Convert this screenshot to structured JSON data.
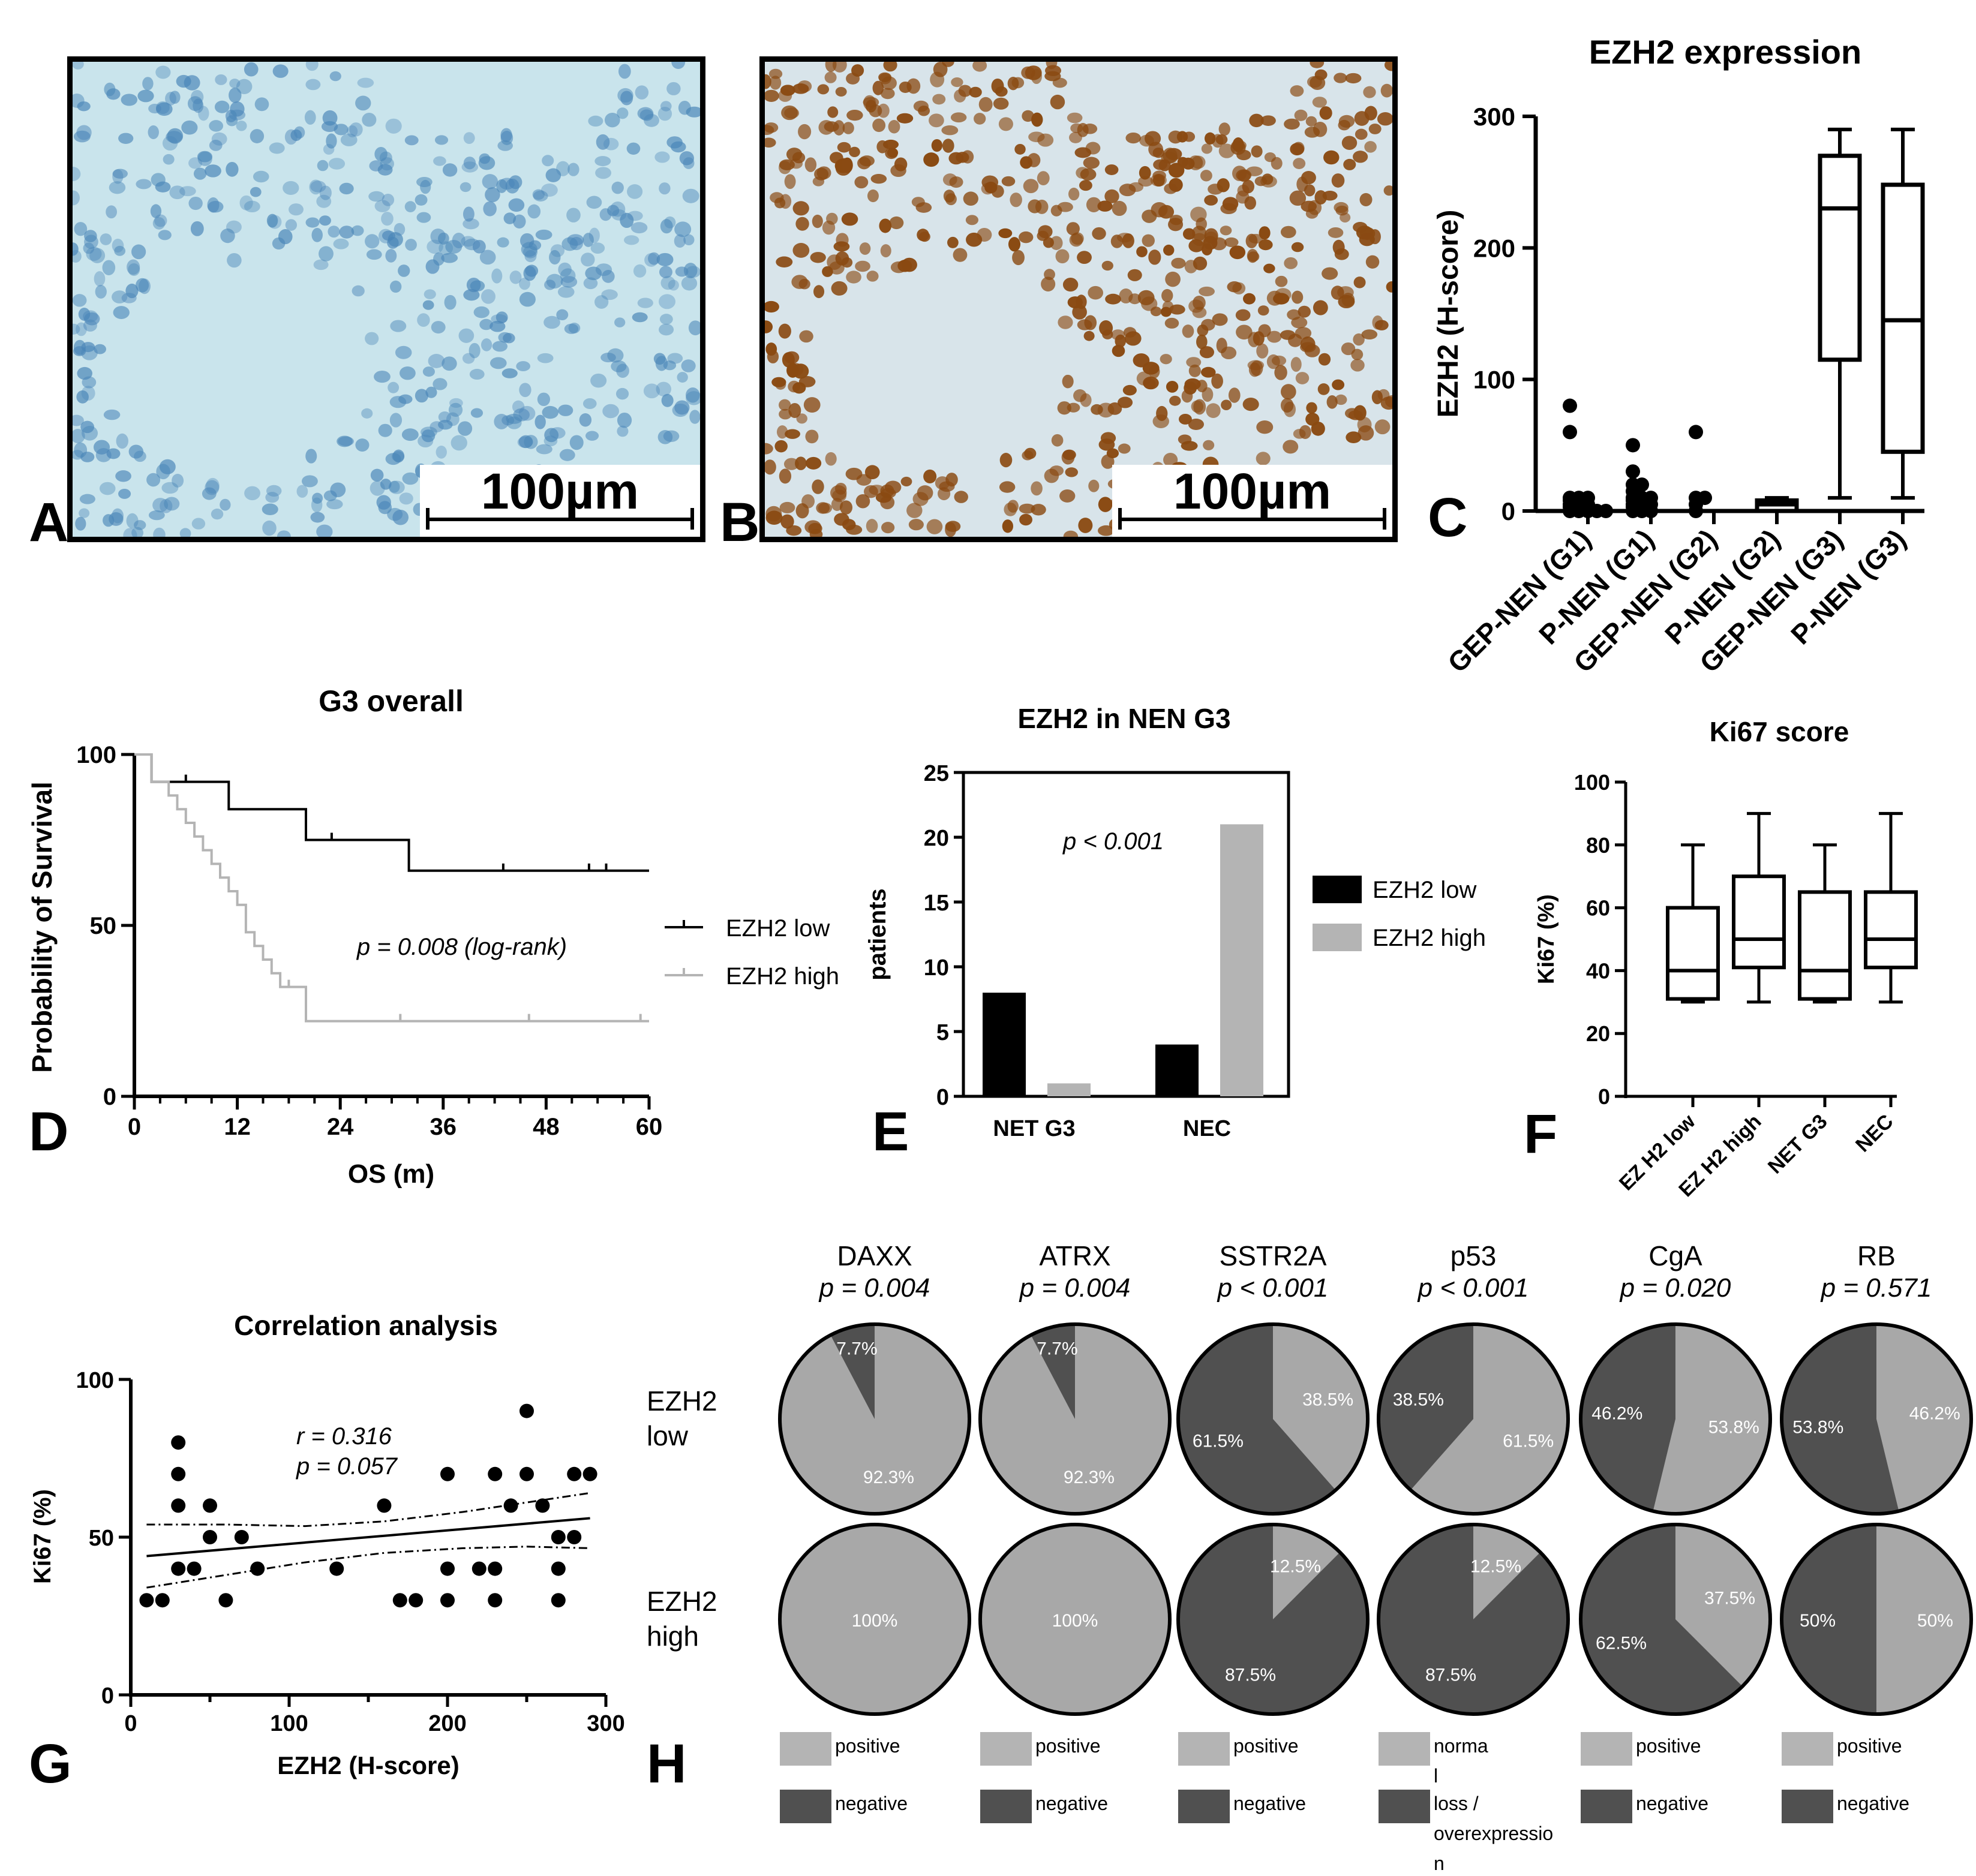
{
  "panel_letters": [
    "A",
    "B",
    "C",
    "D",
    "E",
    "F",
    "G",
    "H"
  ],
  "micrographs": [
    {
      "scale_label": "100µm",
      "stain": "negative",
      "base_color": "#c9e4ec",
      "nucleus_color": "#4a86b8"
    },
    {
      "scale_label": "100µm",
      "stain": "positive",
      "base_color": "#d8e4ea",
      "nucleus_color": "#8a4a12"
    }
  ],
  "colors": {
    "black": "#000000",
    "light_gray": "#b4b4b4",
    "dark_gray": "#505050",
    "mid_gray": "#a8a8a8"
  },
  "chart_data": [
    {
      "panel": "C",
      "type": "box",
      "title": "EZH2 expression",
      "ylabel": "EZH2 (H-score)",
      "ylim": [
        0,
        300
      ],
      "yticks": [
        0,
        100,
        200,
        300
      ],
      "categories": [
        "GEP-NEN (G1)",
        "P-NEN (G1)",
        "GEP-NEN (G2)",
        "P-NEN (G2)",
        "GEP-NEN (G3)",
        "P-NEN (G3)"
      ],
      "scatter_groups": [
        {
          "category": "GEP-NEN (G1)",
          "points": [
            0,
            0,
            0,
            0,
            0,
            3,
            3,
            3,
            5,
            5,
            5,
            8,
            8,
            10,
            10,
            10,
            60,
            80
          ]
        },
        {
          "category": "P-NEN (G1)",
          "points": [
            0,
            0,
            0,
            3,
            3,
            5,
            5,
            5,
            8,
            10,
            10,
            10,
            15,
            20,
            20,
            30,
            50
          ]
        },
        {
          "category": "GEP-NEN (G2)",
          "points": [
            0,
            5,
            10,
            10,
            60
          ]
        }
      ],
      "boxes": [
        {
          "category": "P-NEN (G2)",
          "min": 0,
          "q1": 0,
          "median": 5,
          "q3": 8,
          "max": 10
        },
        {
          "category": "GEP-NEN (G3)",
          "min": 10,
          "q1": 115,
          "median": 230,
          "q3": 270,
          "max": 290
        },
        {
          "category": "P-NEN (G3)",
          "min": 10,
          "q1": 45,
          "median": 145,
          "q3": 248,
          "max": 290
        }
      ]
    },
    {
      "panel": "D",
      "type": "line",
      "title": "G3 overall",
      "xlabel": "OS (m)",
      "ylabel": "Probability of Survival",
      "xlim": [
        0,
        60
      ],
      "ylim": [
        0,
        100
      ],
      "xticks": [
        0,
        12,
        24,
        36,
        48,
        60
      ],
      "yticks": [
        0,
        50,
        100
      ],
      "annotation": "p = 0.008 (log-rank)",
      "series": [
        {
          "name": "EZH2 low",
          "color": "#000000",
          "steps": [
            [
              0,
              100
            ],
            [
              2,
              100
            ],
            [
              2,
              92
            ],
            [
              11,
              92
            ],
            [
              11,
              84
            ],
            [
              20,
              84
            ],
            [
              20,
              75
            ],
            [
              32,
              75
            ],
            [
              32,
              66
            ],
            [
              60,
              66
            ]
          ],
          "censors": [
            [
              6,
              92
            ],
            [
              23,
              75
            ],
            [
              43,
              66
            ],
            [
              53,
              66
            ],
            [
              55,
              66
            ]
          ]
        },
        {
          "name": "EZH2 high",
          "color": "#b4b4b4",
          "steps": [
            [
              0,
              100
            ],
            [
              2,
              100
            ],
            [
              2,
              92
            ],
            [
              4,
              92
            ],
            [
              4,
              88
            ],
            [
              5,
              88
            ],
            [
              5,
              84
            ],
            [
              6,
              84
            ],
            [
              6,
              80
            ],
            [
              7,
              80
            ],
            [
              7,
              76
            ],
            [
              8,
              76
            ],
            [
              8,
              72
            ],
            [
              9,
              72
            ],
            [
              9,
              68
            ],
            [
              10,
              68
            ],
            [
              10,
              64
            ],
            [
              11,
              64
            ],
            [
              11,
              60
            ],
            [
              12,
              60
            ],
            [
              12,
              56
            ],
            [
              13,
              56
            ],
            [
              13,
              48
            ],
            [
              14,
              48
            ],
            [
              14,
              44
            ],
            [
              15,
              44
            ],
            [
              15,
              40
            ],
            [
              16,
              40
            ],
            [
              16,
              36
            ],
            [
              17,
              36
            ],
            [
              17,
              32
            ],
            [
              20,
              32
            ],
            [
              20,
              22
            ],
            [
              60,
              22
            ]
          ],
          "censors": [
            [
              18,
              32
            ],
            [
              31,
              22
            ],
            [
              46,
              22
            ],
            [
              59,
              22
            ]
          ]
        }
      ]
    },
    {
      "panel": "E",
      "type": "bar",
      "title": "EZH2 in NEN G3",
      "ylabel": "patients",
      "ylim": [
        0,
        25
      ],
      "yticks": [
        0,
        5,
        10,
        15,
        20,
        25
      ],
      "categories": [
        "NET G3",
        "NEC"
      ],
      "annotation": "p < 0.001",
      "series": [
        {
          "name": "EZH2 low",
          "color": "#000000",
          "values": [
            8,
            4
          ]
        },
        {
          "name": "EZH2 high",
          "color": "#b4b4b4",
          "values": [
            1,
            21
          ]
        }
      ]
    },
    {
      "panel": "F",
      "type": "box",
      "title": "Ki67 score",
      "ylabel": "Ki67 (%)",
      "ylim": [
        0,
        100
      ],
      "yticks": [
        0,
        20,
        40,
        60,
        80,
        100
      ],
      "categories": [
        "EZ H2 low",
        "EZ H2 high",
        "NET G3",
        "NEC"
      ],
      "boxes": [
        {
          "category": "EZ H2 low",
          "min": 30,
          "q1": 31,
          "median": 40,
          "q3": 60,
          "max": 80
        },
        {
          "category": "EZ H2 high",
          "min": 30,
          "q1": 41,
          "median": 50,
          "q3": 70,
          "max": 90
        },
        {
          "category": "NET G3",
          "min": 30,
          "q1": 31,
          "median": 40,
          "q3": 65,
          "max": 80
        },
        {
          "category": "NEC",
          "min": 30,
          "q1": 41,
          "median": 50,
          "q3": 65,
          "max": 90
        }
      ]
    },
    {
      "panel": "G",
      "type": "scatter",
      "title": "Correlation analysis",
      "xlabel": "EZH2 (H-score)",
      "ylabel": "Ki67 (%)",
      "xlim": [
        0,
        300
      ],
      "ylim": [
        0,
        100
      ],
      "xticks": [
        0,
        100,
        200,
        300
      ],
      "yticks": [
        0,
        50,
        100
      ],
      "annotation_lines": [
        "r = 0.316",
        "p = 0.057"
      ],
      "points": [
        [
          10,
          30
        ],
        [
          20,
          30
        ],
        [
          30,
          80
        ],
        [
          30,
          70
        ],
        [
          30,
          60
        ],
        [
          30,
          40
        ],
        [
          40,
          40
        ],
        [
          50,
          60
        ],
        [
          50,
          50
        ],
        [
          60,
          30
        ],
        [
          70,
          50
        ],
        [
          80,
          40
        ],
        [
          130,
          40
        ],
        [
          160,
          60
        ],
        [
          170,
          30
        ],
        [
          180,
          30
        ],
        [
          200,
          70
        ],
        [
          200,
          40
        ],
        [
          200,
          30
        ],
        [
          220,
          40
        ],
        [
          230,
          70
        ],
        [
          230,
          40
        ],
        [
          230,
          30
        ],
        [
          240,
          60
        ],
        [
          250,
          90
        ],
        [
          250,
          70
        ],
        [
          260,
          60
        ],
        [
          270,
          50
        ],
        [
          270,
          40
        ],
        [
          270,
          30
        ],
        [
          280,
          70
        ],
        [
          280,
          50
        ],
        [
          290,
          70
        ]
      ],
      "fit": {
        "x": [
          10,
          290
        ],
        "y": [
          44,
          56
        ]
      },
      "band_upper": {
        "x": [
          10,
          60,
          110,
          160,
          210,
          250,
          290
        ],
        "y": [
          54,
          54,
          53.5,
          55,
          58,
          61,
          64
        ]
      },
      "band_lower": {
        "x": [
          10,
          60,
          110,
          160,
          210,
          250,
          290
        ],
        "y": [
          34,
          38,
          42,
          45,
          46.5,
          47,
          46.5
        ]
      }
    },
    {
      "panel": "H",
      "type": "pie",
      "row_labels": [
        [
          "EZH2",
          "low"
        ],
        [
          "EZH2",
          "high"
        ]
      ],
      "markers": [
        {
          "name": "DAXX",
          "p": "p = 0.004",
          "low": {
            "values": [
              7.7,
              92.3
            ],
            "labels": [
              "7.7%",
              "92.3%"
            ]
          },
          "high": {
            "values": [
              0,
              100
            ],
            "labels": [
              "",
              "100%"
            ]
          },
          "legend": [
            "positive",
            "negative"
          ]
        },
        {
          "name": "ATRX",
          "p": "p = 0.004",
          "low": {
            "values": [
              7.7,
              92.3
            ],
            "labels": [
              "7.7%",
              "92.3%"
            ]
          },
          "high": {
            "values": [
              0,
              100
            ],
            "labels": [
              "",
              "100%"
            ]
          },
          "legend": [
            "positive",
            "negative"
          ]
        },
        {
          "name": "SSTR2A",
          "p": "p < 0.001",
          "low": {
            "values": [
              61.5,
              38.5
            ],
            "labels": [
              "61.5%",
              "38.5%"
            ]
          },
          "high": {
            "values": [
              87.5,
              12.5
            ],
            "labels": [
              "87.5%",
              "12.5%"
            ]
          },
          "legend": [
            "positive",
            "negative"
          ]
        },
        {
          "name": "p53",
          "p": "p < 0.001",
          "low": {
            "values": [
              38.5,
              61.5
            ],
            "labels": [
              "38.5%",
              "61.5%"
            ]
          },
          "high": {
            "values": [
              87.5,
              12.5
            ],
            "labels": [
              "87.5%",
              "12.5%"
            ]
          },
          "legend": [
            "norma\nl",
            "loss /\noverexpressio\nn"
          ]
        },
        {
          "name": "CgA",
          "p": "p = 0.020",
          "low": {
            "values": [
              46.2,
              53.8
            ],
            "labels": [
              "46.2%",
              "53.8%"
            ]
          },
          "high": {
            "values": [
              62.5,
              37.5
            ],
            "labels": [
              "62.5%",
              "37.5%"
            ]
          },
          "legend": [
            "positive",
            "negative"
          ]
        },
        {
          "name": "RB",
          "p": "p = 0.571",
          "low": {
            "values": [
              53.8,
              46.2
            ],
            "labels": [
              "53.8%",
              "46.2%"
            ]
          },
          "high": {
            "values": [
              50,
              50
            ],
            "labels": [
              "50%",
              "50%"
            ]
          },
          "legend": [
            "positive",
            "negative"
          ]
        }
      ]
    }
  ]
}
